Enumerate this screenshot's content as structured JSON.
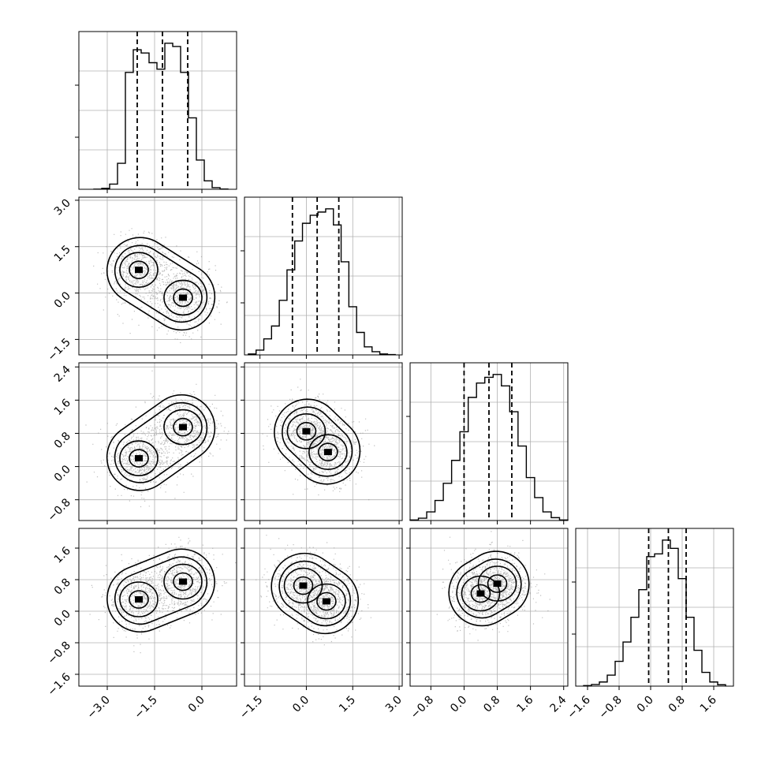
{
  "chart_data": {
    "type": "corner",
    "n_params": 4,
    "grid": true,
    "axis_labels": [],
    "params": [
      {
        "range": [
          -3.9,
          1.1
        ],
        "ticks": [
          "−3.0",
          "−1.5",
          "0.0"
        ],
        "tick_values": [
          -3.0,
          -1.5,
          0.0
        ]
      },
      {
        "range": [
          -2.0,
          3.1
        ],
        "ticks": [
          "−1.5",
          "0.0",
          "1.5",
          "3.0"
        ],
        "tick_values": [
          -1.5,
          0.0,
          1.5,
          3.0
        ]
      },
      {
        "range": [
          -1.3,
          2.5
        ],
        "ticks": [
          "−0.8",
          "0.0",
          "0.8",
          "1.6",
          "2.4"
        ],
        "tick_values": [
          -0.8,
          0.0,
          0.8,
          1.6,
          2.4
        ]
      },
      {
        "range": [
          -1.9,
          2.1
        ],
        "ticks": [
          "−1.6",
          "−0.8",
          "0.0",
          "0.8",
          "1.6"
        ],
        "tick_values": [
          -1.6,
          -0.8,
          0.0,
          0.8,
          1.6
        ]
      }
    ],
    "marginals": [
      {
        "x": [
          -3.3,
          -3.05,
          -2.8,
          -2.55,
          -2.3,
          -2.05,
          -1.8,
          -1.55,
          -1.3,
          -1.05,
          -0.8,
          -0.55,
          -0.3,
          -0.05,
          0.2,
          0.45,
          0.7
        ],
        "counts": [
          4,
          30,
          160,
          800,
          3600,
          4300,
          4200,
          3900,
          3700,
          4500,
          4400,
          3600,
          2200,
          900,
          260,
          50,
          6
        ],
        "quantiles": [
          -2.05,
          -1.25,
          -0.45
        ]
      },
      {
        "x": [
          -1.75,
          -1.5,
          -1.25,
          -1.0,
          -0.75,
          -0.5,
          -0.25,
          0.0,
          0.25,
          0.5,
          0.75,
          1.0,
          1.25,
          1.5,
          1.75,
          2.0,
          2.25,
          2.5,
          2.75
        ],
        "counts": [
          30,
          150,
          500,
          900,
          1700,
          2650,
          3550,
          4100,
          4350,
          4450,
          4550,
          4050,
          2900,
          1500,
          700,
          250,
          100,
          30,
          10
        ],
        "quantiles": [
          -0.45,
          0.35,
          1.05
        ]
      },
      {
        "x": [
          -1.2,
          -1.0,
          -0.8,
          -0.6,
          -0.4,
          -0.2,
          0.0,
          0.2,
          0.4,
          0.6,
          0.8,
          1.0,
          1.2,
          1.4,
          1.6,
          1.8,
          2.0,
          2.2,
          2.4
        ],
        "counts": [
          20,
          80,
          300,
          700,
          1300,
          2100,
          3100,
          4300,
          4800,
          5000,
          5100,
          4700,
          3800,
          2600,
          1500,
          800,
          300,
          100,
          20
        ],
        "quantiles": [
          0.0,
          0.6,
          1.15
        ]
      },
      {
        "x": [
          -1.6,
          -1.4,
          -1.2,
          -1.0,
          -0.8,
          -0.6,
          -0.4,
          -0.2,
          0.0,
          0.2,
          0.4,
          0.6,
          0.8,
          1.0,
          1.2,
          1.4,
          1.6,
          1.8
        ],
        "counts": [
          20,
          60,
          150,
          400,
          900,
          1600,
          2500,
          3500,
          4700,
          4800,
          5300,
          5000,
          3900,
          2500,
          1300,
          500,
          150,
          50
        ],
        "quantiles": [
          -0.05,
          0.45,
          0.9
        ]
      }
    ],
    "joint": [
      {
        "row": 1,
        "col": 0,
        "modes": [
          {
            "x": -2.0,
            "y": 0.75
          },
          {
            "x": -0.6,
            "y": -0.15
          }
        ]
      },
      {
        "row": 2,
        "col": 0,
        "modes": [
          {
            "x": -2.0,
            "y": 0.2
          },
          {
            "x": -0.6,
            "y": 0.95
          }
        ]
      },
      {
        "row": 2,
        "col": 1,
        "modes": [
          {
            "x": 0.0,
            "y": 0.85
          },
          {
            "x": 0.7,
            "y": 0.35
          }
        ]
      },
      {
        "row": 3,
        "col": 0,
        "modes": [
          {
            "x": -2.0,
            "y": 0.3
          },
          {
            "x": -0.6,
            "y": 0.75
          }
        ]
      },
      {
        "row": 3,
        "col": 1,
        "modes": [
          {
            "x": -0.1,
            "y": 0.65
          },
          {
            "x": 0.65,
            "y": 0.25
          }
        ]
      },
      {
        "row": 3,
        "col": 2,
        "modes": [
          {
            "x": 0.4,
            "y": 0.45
          },
          {
            "x": 0.8,
            "y": 0.7
          }
        ]
      }
    ],
    "colors": {
      "ink": "#000000",
      "grid": "#b0b0b0",
      "scatter": "#8a8a8a"
    }
  }
}
